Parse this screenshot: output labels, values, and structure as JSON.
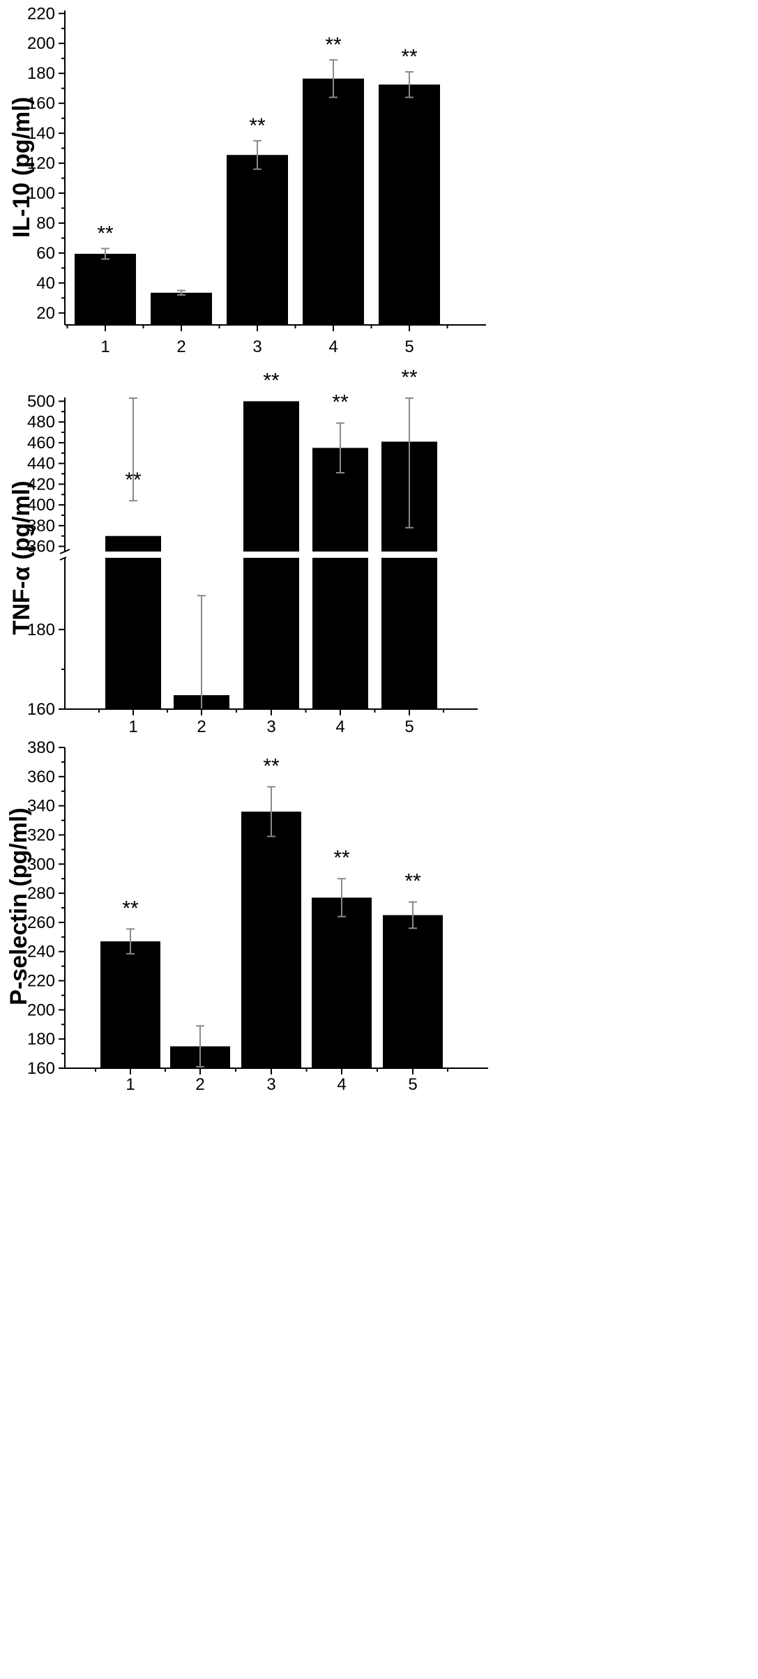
{
  "chart_data": [
    {
      "type": "bar",
      "categories": [
        "1",
        "2",
        "3",
        "4",
        "5"
      ],
      "values": [
        59.5,
        33.5,
        125.5,
        176.5,
        172.5
      ],
      "errors": [
        3.5,
        1.5,
        9.5,
        12.5,
        8.5
      ],
      "annotations": [
        "**",
        "",
        "**",
        "**",
        "**"
      ],
      "ylabel": "IL-10 (pg/ml)",
      "ylim": [
        12,
        222
      ],
      "yticks": [
        20,
        40,
        60,
        80,
        100,
        120,
        140,
        160,
        180,
        200,
        220
      ],
      "ytick_labels": [
        "20",
        "40",
        "60",
        "80",
        "100",
        "120",
        "140",
        "160",
        "180",
        "200",
        "220"
      ],
      "grid": false,
      "legend": "none",
      "bar_color": "#000000"
    },
    {
      "type": "bar",
      "categories": [
        "1",
        "2",
        "3",
        "4",
        "5"
      ],
      "values": [
        370,
        163.5,
        500,
        455,
        461
      ],
      "errors": [
        34,
        25,
        0,
        24,
        83
      ],
      "annotations": [
        "**",
        "",
        "**",
        "**",
        "**"
      ],
      "ylabel": "TNF-α (pg/ml)",
      "axis_break": {
        "lower_range": [
          160,
          198
        ],
        "upper_range": [
          355,
          503
        ]
      },
      "yticks": [
        160,
        180,
        360,
        380,
        400,
        420,
        440,
        460,
        480,
        500
      ],
      "ytick_labels": [
        "160",
        "180",
        "360",
        "380",
        "400",
        "420",
        "440",
        "460",
        "480",
        "500"
      ],
      "grid": false,
      "legend": "none",
      "bar_color": "#000000"
    },
    {
      "type": "bar",
      "categories": [
        "1",
        "2",
        "3",
        "4",
        "5"
      ],
      "values": [
        247,
        175,
        336,
        277,
        265
      ],
      "errors": [
        8.5,
        14,
        17,
        13,
        9
      ],
      "annotations": [
        "**",
        "",
        "**",
        "**",
        "**"
      ],
      "ylabel": "P-selectin (pg/ml)",
      "ylim": [
        160,
        380
      ],
      "yticks": [
        160,
        180,
        200,
        220,
        240,
        260,
        280,
        300,
        320,
        340,
        360,
        380
      ],
      "ytick_labels": [
        "160",
        "180",
        "200",
        "220",
        "240",
        "260",
        "280",
        "300",
        "320",
        "340",
        "360",
        "380"
      ],
      "grid": false,
      "legend": "none",
      "bar_color": "#000000"
    }
  ]
}
